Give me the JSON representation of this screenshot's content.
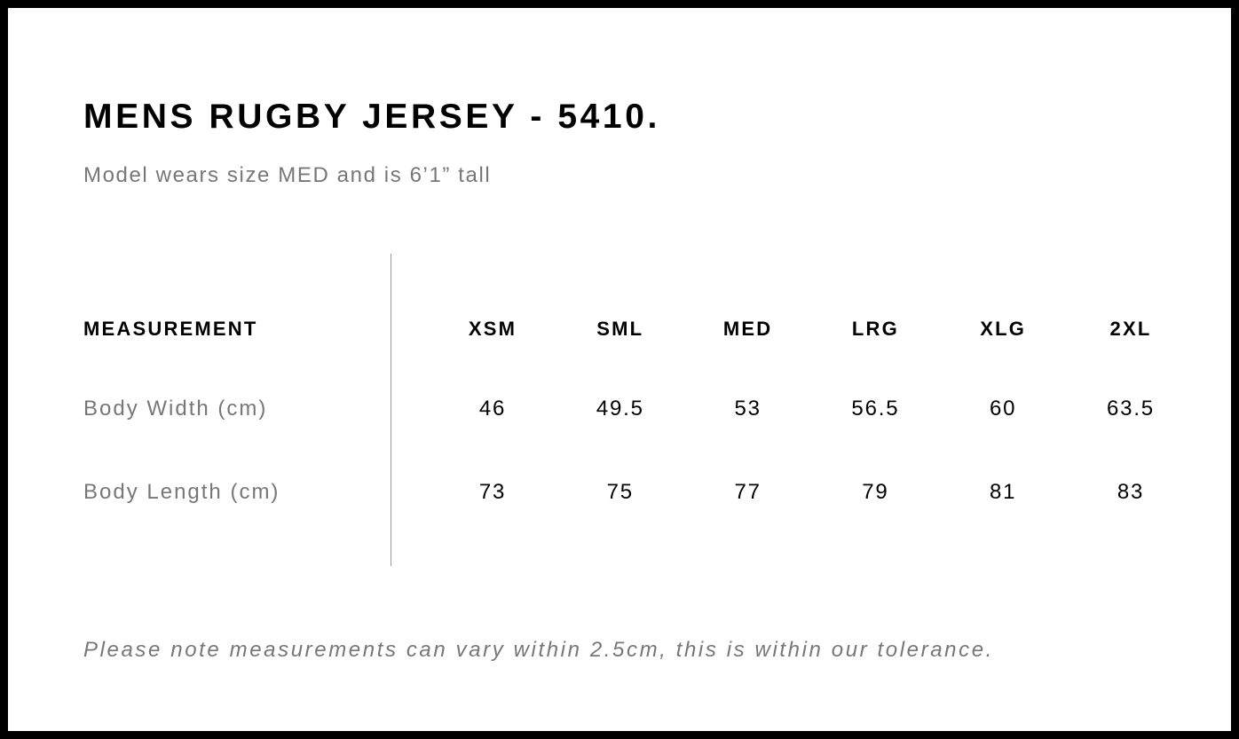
{
  "header": {
    "title": "MENS RUGBY JERSEY - 5410.",
    "subtitle": "Model wears size MED and is 6’1” tall"
  },
  "table": {
    "headers": [
      "MEASUREMENT",
      "XSM",
      "SML",
      "MED",
      "LRG",
      "XLG",
      "2XL"
    ],
    "rows": [
      [
        "Body Width (cm)",
        46,
        49.5,
        53,
        56.5,
        60,
        63.5
      ],
      [
        "Body Length (cm)",
        73,
        75,
        77,
        79,
        81,
        83
      ]
    ]
  },
  "note": "Please note measurements can vary within 2.5cm, this is within our tolerance."
}
